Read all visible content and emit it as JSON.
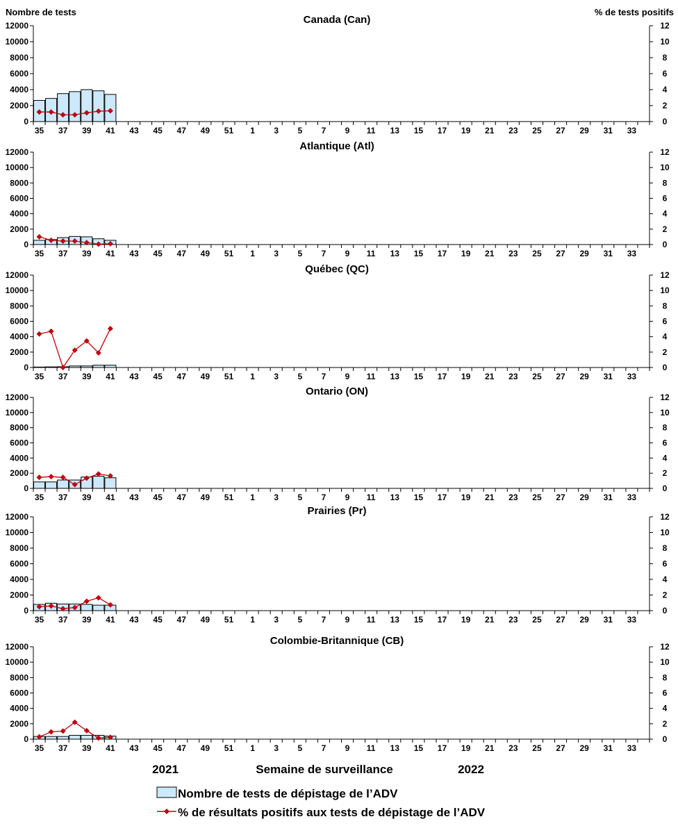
{
  "chart_data": [
    {
      "type": "bar+line",
      "title": "Canada (Can)",
      "bars": [
        2650,
        2900,
        3500,
        3750,
        4000,
        3850,
        3400
      ],
      "line": [
        1.2,
        1.2,
        0.85,
        0.85,
        1.1,
        1.3,
        1.35
      ]
    },
    {
      "type": "bar+line",
      "title": "Atlantique (Atl)",
      "bars": [
        550,
        650,
        900,
        1050,
        1000,
        750,
        550
      ],
      "line": [
        1.0,
        0.55,
        0.45,
        0.45,
        0.25,
        0.05,
        0.1
      ]
    },
    {
      "type": "bar+line",
      "title": "Québec (QC)",
      "bars": [
        60,
        80,
        100,
        200,
        200,
        300,
        300
      ],
      "line": [
        4.35,
        4.7,
        0,
        2.25,
        3.45,
        1.9,
        5.05
      ]
    },
    {
      "type": "bar+line",
      "title": "Ontario (ON)",
      "bars": [
        850,
        850,
        1100,
        1100,
        1500,
        1600,
        1400
      ],
      "line": [
        1.45,
        1.55,
        1.45,
        0.5,
        1.35,
        1.9,
        1.65
      ]
    },
    {
      "type": "bar+line",
      "title": "Prairies (Pr)",
      "bars": [
        800,
        950,
        850,
        850,
        800,
        700,
        700
      ],
      "line": [
        0.5,
        0.6,
        0.25,
        0.4,
        1.2,
        1.65,
        0.75
      ]
    },
    {
      "type": "bar+line",
      "title": "Colombie-Britannique (CB)",
      "bars": [
        350,
        350,
        350,
        500,
        500,
        500,
        400
      ],
      "line": [
        0.3,
        0.95,
        1.05,
        2.2,
        1.1,
        0.15,
        0.25
      ]
    }
  ],
  "shared": {
    "weeks": [
      35,
      36,
      37,
      38,
      39,
      40,
      41,
      42,
      43,
      44,
      45,
      46,
      47,
      48,
      49,
      50,
      51,
      52,
      1,
      2,
      3,
      4,
      5,
      6,
      7,
      8,
      9,
      10,
      11,
      12,
      13,
      14,
      15,
      16,
      17,
      18,
      19,
      20,
      21,
      22,
      23,
      24,
      25,
      26,
      27,
      28,
      29,
      30,
      31,
      32,
      33,
      34
    ],
    "week_labels_every": 2,
    "left_axis": {
      "label": "Nombre de tests",
      "range": [
        0,
        12000
      ],
      "ticks": [
        0,
        2000,
        4000,
        6000,
        8000,
        10000,
        12000
      ]
    },
    "right_axis": {
      "label": "% de tests positifs",
      "range": [
        0,
        12
      ],
      "ticks": [
        0,
        2,
        4,
        6,
        8,
        10,
        12
      ]
    },
    "xlabel": "Semaine de surveillance",
    "year_labels": [
      "2021",
      "2022"
    ],
    "legend": {
      "placement": "bottom",
      "bars": "Nombre de tests de dépistage de l’ADV",
      "line": "% de résultats positifs aux tests de dépistage de l’ADV"
    },
    "colors": {
      "bar_fill": "#cce9fb",
      "bar_stroke": "#000000",
      "line": "#c0000b"
    }
  }
}
